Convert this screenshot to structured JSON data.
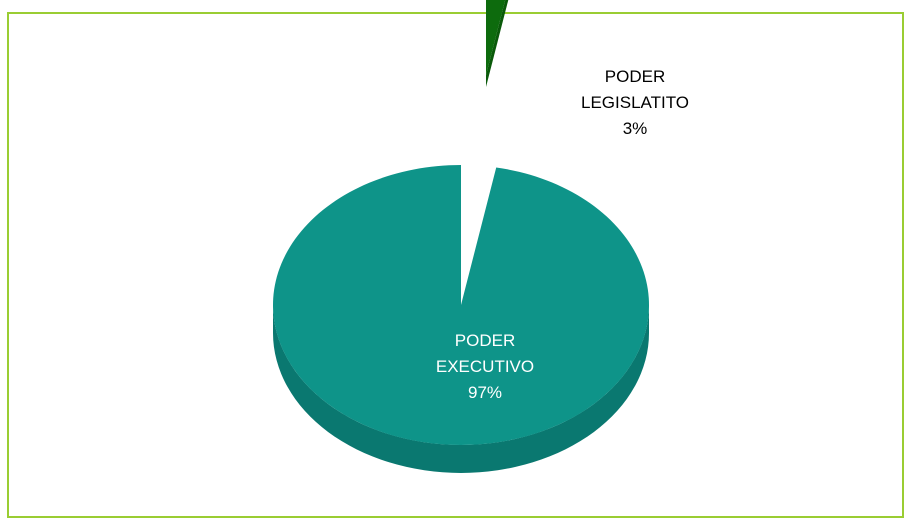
{
  "chart_data": {
    "type": "pie",
    "slices": [
      {
        "label_lines": [
          "PODER",
          "EXECUTIVO",
          "97%"
        ],
        "value": 97,
        "color": "#0e9489"
      },
      {
        "label_lines": [
          "PODER",
          "LEGISLATITO",
          "3%"
        ],
        "value": 3,
        "color": "#0d6b0d"
      }
    ],
    "legend": false
  },
  "colors": {
    "frame_border": "#9acd32",
    "executivo_top": "#0e9489",
    "executivo_side": "#0a7870",
    "legislativo_top": "#0d6b0d",
    "legislativo_side": "#0a5a0a",
    "label_executivo": "#ffffff",
    "label_legislativo": "#000000"
  }
}
